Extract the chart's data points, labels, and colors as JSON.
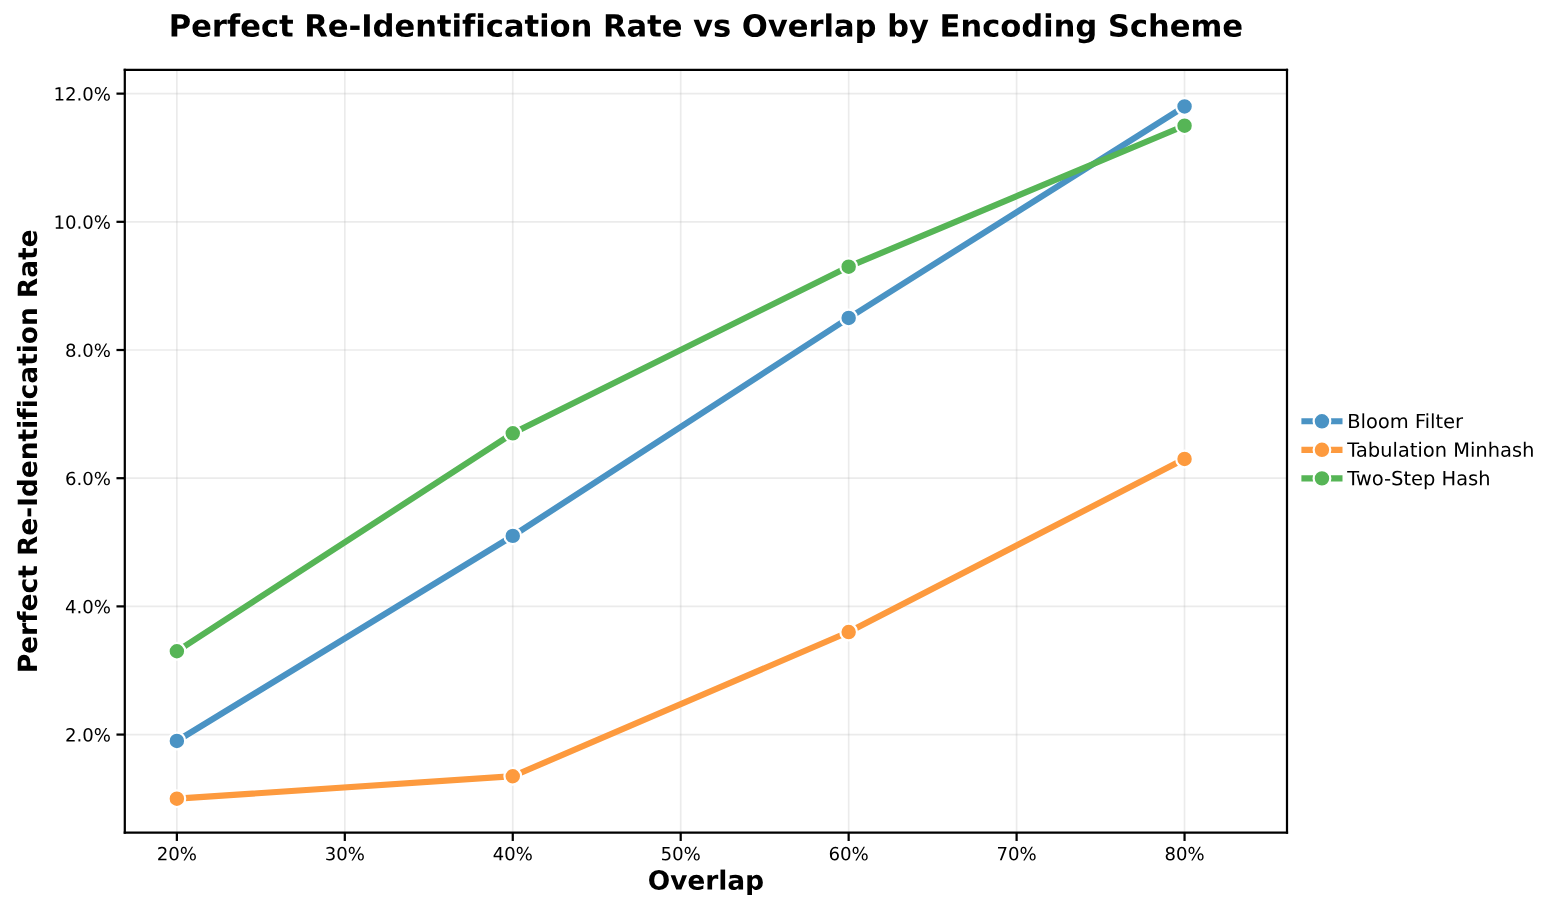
{
  "chart_data": {
    "type": "line",
    "title": "Perfect Re-Identification Rate vs Overlap by Encoding Scheme",
    "xlabel": "Overlap",
    "ylabel": "Perfect Re-Identification Rate",
    "x": [
      20,
      40,
      60,
      80
    ],
    "series": [
      {
        "name": "Bloom Filter",
        "color": "#4a93c4",
        "values": [
          1.9,
          5.1,
          8.5,
          11.8
        ]
      },
      {
        "name": "Tabulation Minhash",
        "color": "#fd9a3e",
        "values": [
          1.0,
          1.35,
          3.6,
          6.3
        ]
      },
      {
        "name": "Two-Step Hash",
        "color": "#56b556",
        "values": [
          3.3,
          6.7,
          9.3,
          11.5
        ]
      }
    ],
    "xlim": [
      16.9,
      86.1
    ],
    "ylim": [
      0.47,
      12.37
    ],
    "xticks": [
      {
        "value": 20,
        "label": "20%"
      },
      {
        "value": 30,
        "label": "30%"
      },
      {
        "value": 40,
        "label": "40%"
      },
      {
        "value": 50,
        "label": "50%"
      },
      {
        "value": 60,
        "label": "60%"
      },
      {
        "value": 70,
        "label": "70%"
      },
      {
        "value": 80,
        "label": "80%"
      }
    ],
    "yticks": [
      {
        "value": 2,
        "label": "2.0%"
      },
      {
        "value": 4,
        "label": "4.0%"
      },
      {
        "value": 6,
        "label": "6.0%"
      },
      {
        "value": 8,
        "label": "8.0%"
      },
      {
        "value": 10,
        "label": "10.0%"
      },
      {
        "value": 12,
        "label": "12.0%"
      }
    ],
    "grid": true,
    "legend": "right",
    "marker": "circle",
    "line_style": "solid"
  }
}
